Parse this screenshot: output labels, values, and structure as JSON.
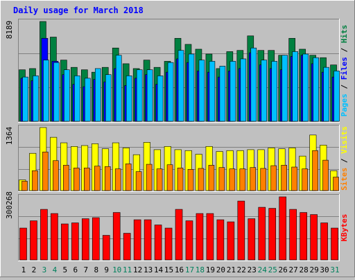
{
  "chart_data": {
    "type": "bar",
    "title": "Daily usage for March 2018",
    "colors": {
      "background": "#c0c0c0",
      "title": "#0000ff",
      "hits": "#008040",
      "files": "#0000ff",
      "pages": "#00c0ff",
      "visits": "#ffff00",
      "sites": "#ff8000",
      "kbytes": "#ff0000",
      "weekend_day": "#00805c"
    },
    "categories": [
      "1",
      "2",
      "3",
      "4",
      "5",
      "6",
      "7",
      "8",
      "9",
      "10",
      "11",
      "12",
      "13",
      "14",
      "15",
      "16",
      "17",
      "18",
      "19",
      "20",
      "21",
      "22",
      "23",
      "24",
      "25",
      "26",
      "27",
      "28",
      "29",
      "30",
      "31"
    ],
    "weekend_days": [
      "3",
      "4",
      "10",
      "11",
      "17",
      "18",
      "24",
      "25",
      "31"
    ],
    "panels": [
      {
        "name": "hits-files-pages",
        "ymax_label": "8189",
        "ymax": 8189,
        "legend": [
          "Pages",
          "Files",
          "Hits"
        ],
        "series": [
          {
            "name": "Hits",
            "values": [
              4200,
              4300,
              8189,
              6900,
              5000,
              4400,
              4200,
              4000,
              4400,
              6000,
              4700,
              4300,
              5000,
              4400,
              4900,
              6800,
              6300,
              5900,
              5500,
              4300,
              5700,
              5800,
              7000,
              5800,
              5800,
              5400,
              6800,
              5900,
              5400,
              5200,
              4600
            ]
          },
          {
            "name": "Files",
            "values": [
              3500,
              3300,
              6800,
              4900,
              3800,
              3000,
              2800,
              3400,
              3200,
              4300,
              2900,
              3500,
              3800,
              3000,
              4000,
              5100,
              4800,
              4100,
              4000,
              3600,
              4100,
              4300,
              5600,
              4600,
              4300,
              4200,
              5300,
              5400,
              4700,
              4000,
              3600
            ]
          },
          {
            "name": "Pages",
            "values": [
              3600,
              3700,
              5000,
              4800,
              4200,
              3700,
              3500,
              4300,
              3800,
              5400,
              3700,
              4200,
              4200,
              3700,
              4800,
              5800,
              5500,
              5000,
              4900,
              4500,
              4900,
              5100,
              6000,
              5000,
              4900,
              5400,
              5700,
              5500,
              5200,
              4400,
              4100
            ]
          }
        ]
      },
      {
        "name": "visits-sites",
        "ymax_label": "1364",
        "ymax": 1364,
        "legend": [
          "Sites",
          "/",
          "Visits"
        ],
        "series": [
          {
            "name": "Visits",
            "values": [
              220,
              800,
              1364,
              1150,
              1030,
              950,
              970,
              1010,
              900,
              1030,
              920,
              770,
              1040,
              880,
              950,
              880,
              860,
              780,
              950,
              840,
              860,
              860,
              880,
              880,
              920,
              900,
              920,
              740,
              1200,
              980,
              420
            ]
          },
          {
            "name": "Sites",
            "values": [
              190,
              420,
              830,
              640,
              540,
              480,
              480,
              520,
              510,
              460,
              570,
              400,
              560,
              460,
              550,
              480,
              450,
              470,
              540,
              490,
              460,
              460,
              490,
              470,
              530,
              540,
              500,
              460,
              860,
              650,
              280
            ]
          }
        ]
      },
      {
        "name": "kbytes",
        "ymax_label": "300268",
        "ymax": 300268,
        "legend": [
          "KBytes"
        ],
        "series": [
          {
            "name": "KBytes",
            "values": [
              150000,
              185000,
              240000,
              220000,
              170000,
              175000,
              195000,
              200000,
              115000,
              225000,
              125000,
              190000,
              190000,
              165000,
              150000,
              240000,
              185000,
              220000,
              220000,
              190000,
              180000,
              280000,
              195000,
              250000,
              245000,
              300268,
              240000,
              225000,
              215000,
              175000,
              150000
            ]
          }
        ]
      }
    ]
  }
}
